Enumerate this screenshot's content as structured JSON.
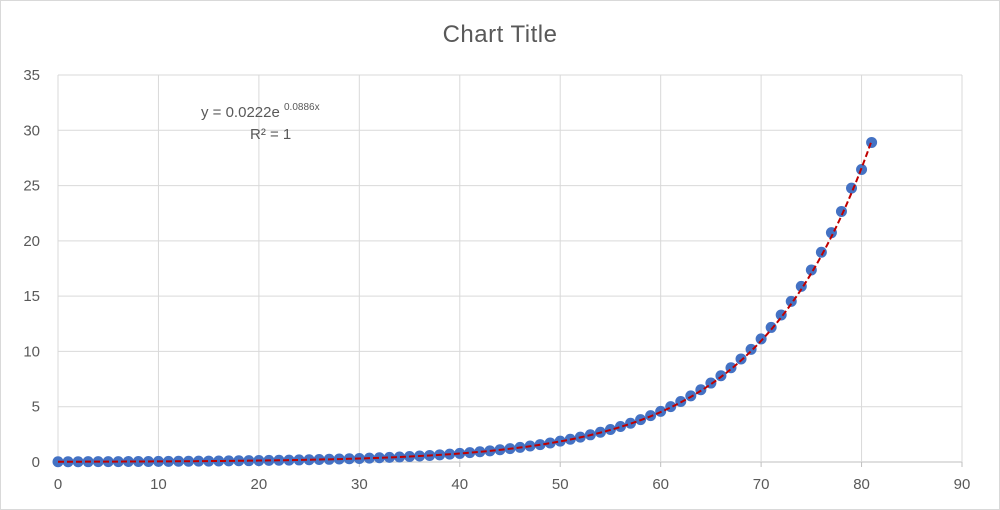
{
  "chart_data": {
    "type": "scatter",
    "title": "Chart Title",
    "xlabel": "",
    "ylabel": "",
    "xlim": [
      0,
      90
    ],
    "ylim": [
      0,
      35
    ],
    "x_ticks": [
      0,
      10,
      20,
      30,
      40,
      50,
      60,
      70,
      80,
      90
    ],
    "y_ticks": [
      0,
      5,
      10,
      15,
      20,
      25,
      30,
      35
    ],
    "grid": true,
    "legend": "none",
    "series": [
      {
        "marker_color": "#4472c4",
        "x": [
          0,
          1,
          2,
          3,
          4,
          5,
          6,
          7,
          8,
          9,
          10,
          11,
          12,
          13,
          14,
          15,
          16,
          17,
          18,
          19,
          20,
          21,
          22,
          23,
          24,
          25,
          26,
          27,
          28,
          29,
          30,
          31,
          32,
          33,
          34,
          35,
          36,
          37,
          38,
          39,
          40,
          41,
          42,
          43,
          44,
          45,
          46,
          47,
          48,
          49,
          50,
          51,
          52,
          53,
          54,
          55,
          56,
          57,
          58,
          59,
          60,
          61,
          62,
          63,
          64,
          65,
          66,
          67,
          68,
          69,
          70,
          71,
          72,
          73,
          74,
          75,
          76,
          77,
          78,
          79,
          80,
          81
        ],
        "y": [
          0.022,
          0.024,
          0.026,
          0.029,
          0.032,
          0.035,
          0.038,
          0.041,
          0.045,
          0.049,
          0.054,
          0.058,
          0.064,
          0.07,
          0.077,
          0.084,
          0.091,
          0.1,
          0.109,
          0.119,
          0.131,
          0.143,
          0.156,
          0.171,
          0.187,
          0.204,
          0.223,
          0.244,
          0.267,
          0.291,
          0.318,
          0.348,
          0.38,
          0.416,
          0.454,
          0.497,
          0.543,
          0.593,
          0.649,
          0.709,
          0.775,
          0.847,
          0.925,
          1.011,
          1.105,
          1.208,
          1.32,
          1.443,
          1.577,
          1.723,
          1.884,
          2.058,
          2.25,
          2.459,
          2.687,
          2.937,
          3.21,
          3.508,
          3.834,
          4.19,
          4.579,
          5.005,
          5.47,
          5.978,
          6.533,
          7.14,
          7.803,
          8.528,
          9.32,
          10.19,
          11.13,
          12.17,
          13.3,
          14.53,
          15.88,
          17.36,
          18.97,
          20.74,
          22.66,
          24.77,
          26.45,
          28.9
        ]
      }
    ],
    "trendline": {
      "type": "exponential",
      "color": "#c00000",
      "style": "dashed",
      "a": 0.0222,
      "b": 0.0886,
      "x_range": [
        0,
        81
      ],
      "equation": {
        "prefix": "y = 0.0222e",
        "exponent": "0.0886x"
      },
      "r_squared": "R² = 1"
    }
  },
  "colors": {
    "gridline": "#d9d9d9",
    "axis": "#bfbfbf",
    "marker": "#4472c4",
    "trendline": "#c00000",
    "text": "#595959"
  }
}
